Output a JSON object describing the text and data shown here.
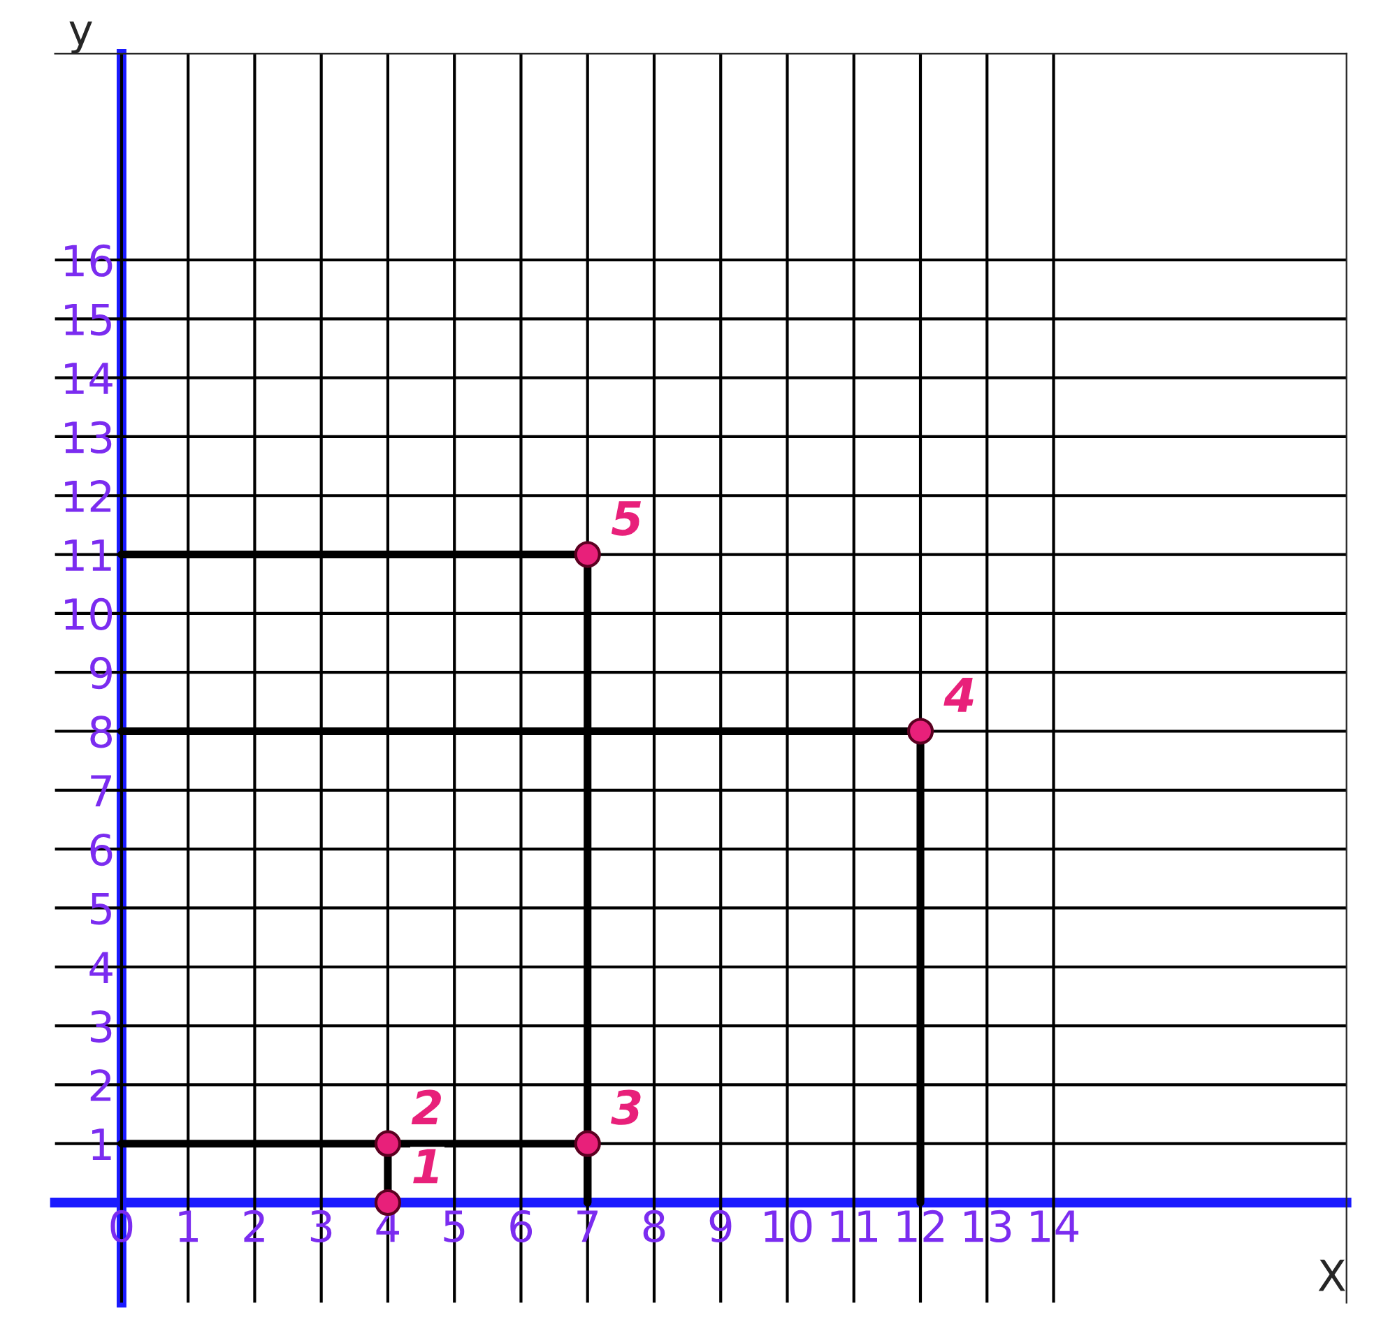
{
  "chart_data": {
    "type": "scatter",
    "xlabel": "X",
    "ylabel": "y",
    "xlim": [
      -1,
      18.4
    ],
    "ylim": [
      -1.7,
      19.5
    ],
    "xticks": [
      0,
      1,
      2,
      3,
      4,
      5,
      6,
      7,
      8,
      9,
      10,
      11,
      12,
      13,
      14
    ],
    "yticks": [
      1,
      2,
      3,
      4,
      5,
      6,
      7,
      8,
      9,
      10,
      11,
      12,
      13,
      14,
      15,
      16
    ],
    "grid": true,
    "marker": "circle",
    "series": [
      {
        "type": "line",
        "marker": "none",
        "color": "#000000",
        "x": [
          0,
          7,
          7
        ],
        "values": [
          11,
          11,
          0
        ]
      },
      {
        "type": "line",
        "marker": "none",
        "color": "#000000",
        "x": [
          0,
          12,
          12
        ],
        "values": [
          8,
          8,
          0
        ]
      },
      {
        "type": "line",
        "marker": "none",
        "color": "#000000",
        "x": [
          0,
          7,
          7
        ],
        "values": [
          1,
          1,
          0
        ]
      },
      {
        "type": "line",
        "marker": "none",
        "color": "#000000",
        "x": [
          4,
          4
        ],
        "values": [
          1,
          0
        ]
      },
      {
        "color": "#e8207a",
        "x": [
          4,
          4,
          7,
          12,
          7
        ],
        "values": [
          0,
          1,
          1,
          8,
          11
        ]
      }
    ],
    "annotations": [
      {
        "text": "1",
        "x": 4,
        "y": 0
      },
      {
        "text": "2",
        "x": 4,
        "y": 1
      },
      {
        "text": "3",
        "x": 7,
        "y": 1
      },
      {
        "text": "4",
        "x": 12,
        "y": 8
      },
      {
        "text": "5",
        "x": 7,
        "y": 11
      }
    ]
  }
}
